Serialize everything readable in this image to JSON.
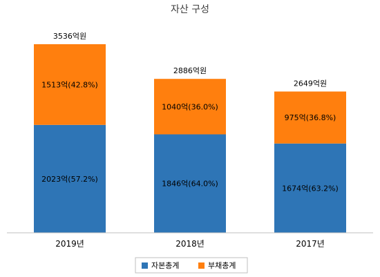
{
  "chart_data": {
    "type": "bar",
    "stacked": true,
    "title": "자산 구성",
    "categories": [
      "2019년",
      "2018년",
      "2017년"
    ],
    "series": [
      {
        "name": "자본총계",
        "color": "#2e75b6",
        "values": [
          2023,
          1846,
          1674
        ],
        "labels": [
          "2023억(57.2%)",
          "1846억(64.0%)",
          "1674억(63.2%)"
        ]
      },
      {
        "name": "부채총계",
        "color": "#ff7f0e",
        "values": [
          1513,
          1040,
          975
        ],
        "labels": [
          "1513억(42.8%)",
          "1040억(36.0%)",
          "975억(36.8%)"
        ]
      }
    ],
    "totals": [
      3536,
      2886,
      2649
    ],
    "total_labels": [
      "3536억원",
      "2886억원",
      "2649억원"
    ],
    "xlabel": "",
    "ylabel": "",
    "ylim": [
      0,
      4000
    ],
    "grid": false,
    "legend": "bottom"
  }
}
